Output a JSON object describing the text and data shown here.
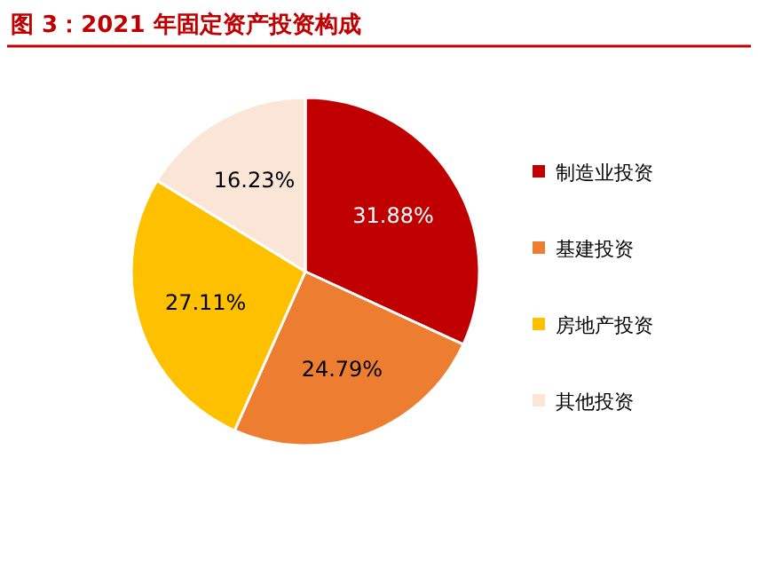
{
  "chart_data": {
    "type": "pie",
    "title": "图 3：2021 年固定资产投资构成",
    "categories": [
      "制造业投资",
      "基建投资",
      "房地产投资",
      "其他投资"
    ],
    "values": [
      31.88,
      24.79,
      27.11,
      16.23
    ],
    "value_labels": [
      "31.88%",
      "24.79%",
      "27.11%",
      "16.23%"
    ],
    "colors": [
      "#c00000",
      "#ed7d31",
      "#ffc000",
      "#fbe5d6"
    ],
    "legend": "right"
  }
}
